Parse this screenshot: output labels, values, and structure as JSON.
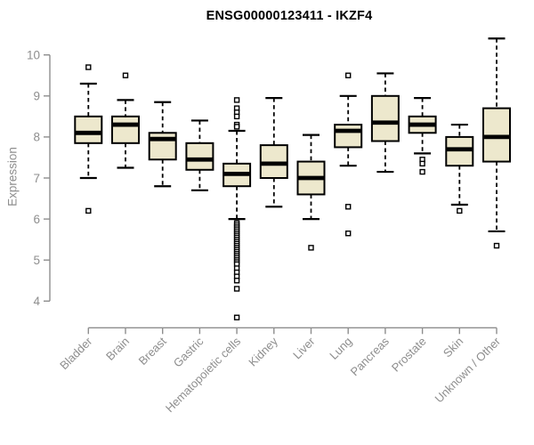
{
  "chart_data": {
    "type": "boxplot",
    "title": "ENSG00000123411 - IKZF4",
    "ylabel": "Expression",
    "xlabel": "",
    "ylim": [
      4,
      10
    ],
    "yticks": [
      4,
      5,
      6,
      7,
      8,
      9,
      10
    ],
    "grid": false,
    "legend": "none",
    "categories": [
      "Bladder",
      "Brain",
      "Breast",
      "Gastric",
      "Hematopoietic cells",
      "Kidney",
      "Liver",
      "Lung",
      "Pancreas",
      "Prostate",
      "Skin",
      "Unknown / Other"
    ],
    "series": [
      {
        "name": "Bladder",
        "whisker_low": 7.0,
        "q1": 7.85,
        "median": 8.1,
        "q3": 8.5,
        "whisker_high": 9.3,
        "outliers": [
          9.7,
          6.2
        ]
      },
      {
        "name": "Brain",
        "whisker_low": 7.25,
        "q1": 7.85,
        "median": 8.3,
        "q3": 8.5,
        "whisker_high": 8.9,
        "outliers": [
          9.5
        ]
      },
      {
        "name": "Breast",
        "whisker_low": 6.8,
        "q1": 7.45,
        "median": 7.95,
        "q3": 8.1,
        "whisker_high": 8.85,
        "outliers": []
      },
      {
        "name": "Gastric",
        "whisker_low": 6.7,
        "q1": 7.2,
        "median": 7.45,
        "q3": 7.85,
        "whisker_high": 8.4,
        "outliers": []
      },
      {
        "name": "Hematopoietic cells",
        "whisker_low": 6.0,
        "q1": 6.8,
        "median": 7.1,
        "q3": 7.35,
        "whisker_high": 8.15,
        "outliers": [
          8.9,
          8.7,
          8.6,
          8.5,
          8.3,
          8.25,
          5.9,
          5.85,
          5.8,
          5.75,
          5.7,
          5.65,
          5.6,
          5.55,
          5.5,
          5.45,
          5.4,
          5.35,
          5.3,
          5.25,
          5.2,
          5.15,
          5.1,
          5.05,
          5.0,
          4.95,
          4.9,
          4.8,
          4.7,
          4.6,
          4.5,
          4.3,
          3.6
        ]
      },
      {
        "name": "Kidney",
        "whisker_low": 6.3,
        "q1": 7.0,
        "median": 7.35,
        "q3": 7.8,
        "whisker_high": 8.95,
        "outliers": []
      },
      {
        "name": "Liver",
        "whisker_low": 6.0,
        "q1": 6.6,
        "median": 7.0,
        "q3": 7.4,
        "whisker_high": 8.05,
        "outliers": [
          5.3
        ]
      },
      {
        "name": "Lung",
        "whisker_low": 7.3,
        "q1": 7.75,
        "median": 8.15,
        "q3": 8.3,
        "whisker_high": 9.0,
        "outliers": [
          9.5,
          6.3,
          5.65
        ]
      },
      {
        "name": "Pancreas",
        "whisker_low": 7.15,
        "q1": 7.9,
        "median": 8.35,
        "q3": 9.0,
        "whisker_high": 9.55,
        "outliers": []
      },
      {
        "name": "Prostate",
        "whisker_low": 7.6,
        "q1": 8.1,
        "median": 8.3,
        "q3": 8.5,
        "whisker_high": 8.95,
        "outliers": [
          7.45,
          7.35,
          7.15
        ]
      },
      {
        "name": "Skin",
        "whisker_low": 6.35,
        "q1": 7.3,
        "median": 7.7,
        "q3": 8.0,
        "whisker_high": 8.3,
        "outliers": [
          6.2
        ]
      },
      {
        "name": "Unknown / Other",
        "whisker_low": 5.7,
        "q1": 7.4,
        "median": 8.0,
        "q3": 8.7,
        "whisker_high": 10.4,
        "outliers": [
          5.35
        ]
      }
    ],
    "colors": {
      "box_fill": "#EDE8CD",
      "box_stroke": "#000000",
      "median": "#000000",
      "whisker": "#000000",
      "outlier_fill": "#FFFFFF",
      "outlier_stroke": "#000000",
      "axis": "#8E8E8E",
      "axis_text": "#8E8E8E",
      "title_text": "#000000",
      "background": "#FFFFFF"
    }
  }
}
